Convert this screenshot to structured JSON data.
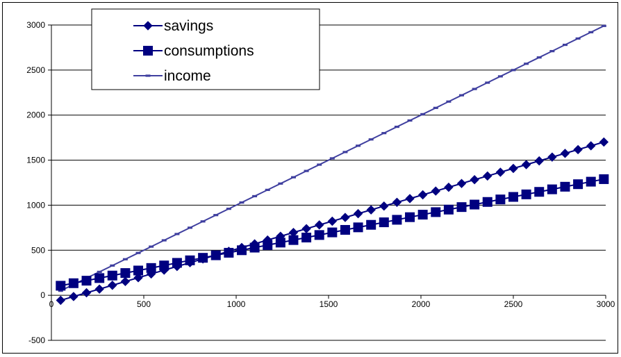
{
  "chart_data": {
    "type": "line",
    "title": "",
    "xlabel": "",
    "ylabel": "",
    "xlim": [
      0,
      3000
    ],
    "ylim": [
      -500,
      3000
    ],
    "x_ticks": [
      0,
      500,
      1000,
      1500,
      2000,
      2500,
      3000
    ],
    "y_ticks": [
      -500,
      0,
      500,
      1000,
      1500,
      2000,
      2500,
      3000
    ],
    "grid": "horizontal",
    "legend_position": "top-left",
    "x": [
      50,
      120,
      190,
      260,
      330,
      400,
      470,
      540,
      610,
      680,
      750,
      820,
      890,
      960,
      1030,
      1100,
      1170,
      1240,
      1310,
      1380,
      1450,
      1520,
      1590,
      1660,
      1730,
      1800,
      1870,
      1940,
      2010,
      2080,
      2150,
      2220,
      2290,
      2360,
      2430,
      2500,
      2570,
      2640,
      2710,
      2780,
      2850,
      2920,
      2990
    ],
    "series": [
      {
        "name": "savings",
        "marker": "diamond",
        "color": "#000080",
        "values": [
          -56,
          -14,
          28,
          69,
          111,
          153,
          195,
          237,
          279,
          320,
          362,
          404,
          446,
          488,
          530,
          571,
          613,
          655,
          697,
          739,
          781,
          822,
          864,
          906,
          948,
          990,
          1032,
          1073,
          1115,
          1157,
          1199,
          1241,
          1283,
          1324,
          1366,
          1408,
          1450,
          1492,
          1534,
          1575,
          1617,
          1659,
          1701
        ]
      },
      {
        "name": "consumptions",
        "marker": "square",
        "color": "#000080",
        "values": [
          106,
          134,
          162,
          191,
          219,
          247,
          275,
          303,
          331,
          360,
          388,
          416,
          444,
          472,
          500,
          529,
          557,
          585,
          613,
          641,
          669,
          698,
          726,
          754,
          782,
          810,
          838,
          867,
          895,
          923,
          951,
          979,
          1007,
          1036,
          1064,
          1092,
          1120,
          1148,
          1176,
          1205,
          1233,
          1261,
          1289
        ]
      },
      {
        "name": "income",
        "marker": "dash",
        "color": "#3f3f9f",
        "values": [
          50,
          120,
          190,
          260,
          330,
          400,
          470,
          540,
          610,
          680,
          750,
          820,
          890,
          960,
          1030,
          1100,
          1170,
          1240,
          1310,
          1380,
          1450,
          1520,
          1590,
          1660,
          1730,
          1800,
          1870,
          1940,
          2010,
          2080,
          2150,
          2220,
          2290,
          2360,
          2430,
          2500,
          2570,
          2640,
          2710,
          2780,
          2850,
          2920,
          2990
        ]
      }
    ]
  }
}
